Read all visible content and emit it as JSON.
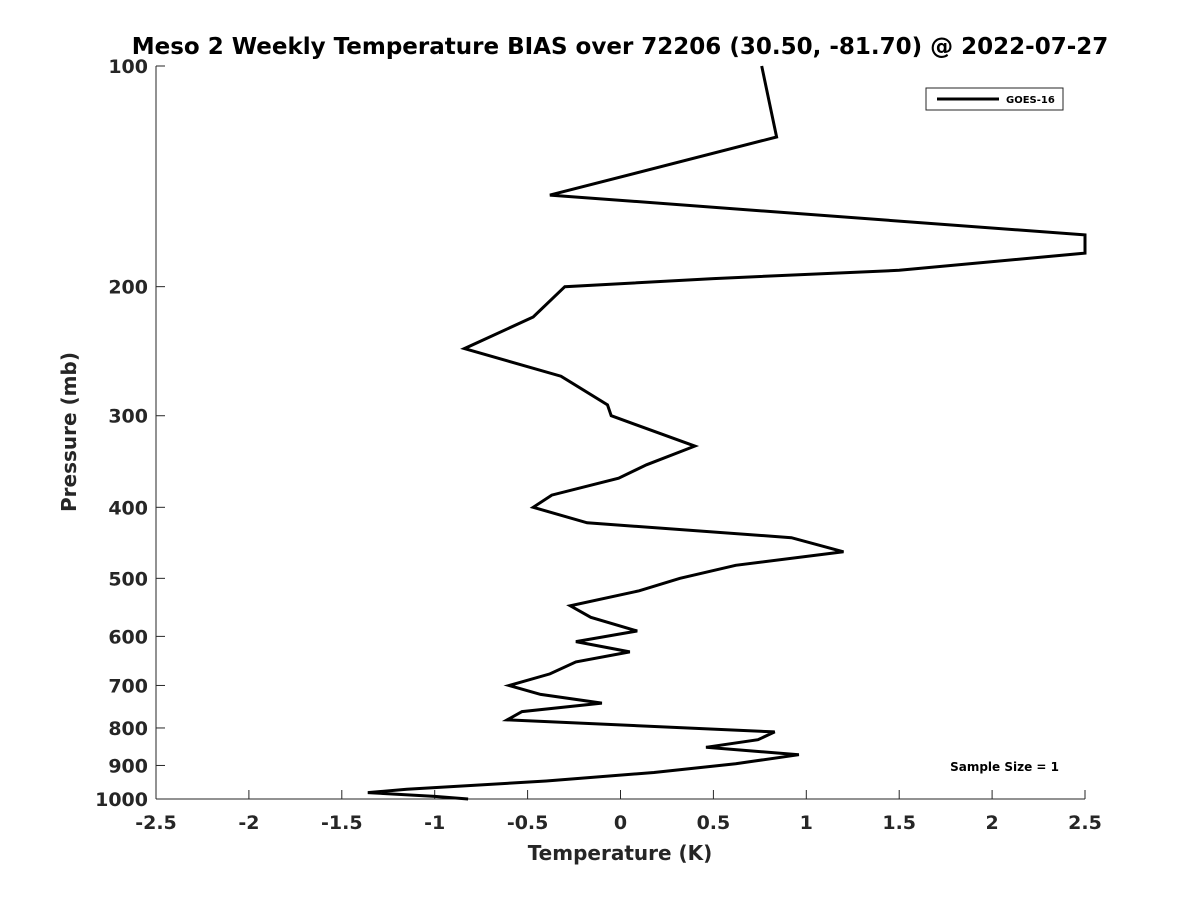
{
  "chart_data": {
    "type": "line",
    "title": "Meso 2 Weekly Temperature BIAS over 72206 (30.50, -81.70) @ 2022-07-27",
    "xlabel": "Temperature (K)",
    "ylabel": "Pressure (mb)",
    "xlim": [
      -2.5,
      2.5
    ],
    "ylim": [
      100,
      1000
    ],
    "y_scale": "log",
    "y_direction": "reversed",
    "x_ticks": [
      -2.5,
      -2,
      -1.5,
      -1,
      -0.5,
      0,
      0.5,
      1,
      1.5,
      2,
      2.5
    ],
    "x_tick_labels": [
      "-2.5",
      "-2",
      "-1.5",
      "-1",
      "-0.5",
      "0",
      "0.5",
      "1",
      "1.5",
      "2",
      "2.5"
    ],
    "y_ticks": [
      100,
      200,
      300,
      400,
      500,
      600,
      700,
      800,
      900,
      1000
    ],
    "y_tick_labels": [
      "100",
      "200",
      "300",
      "400",
      "500",
      "600",
      "700",
      "800",
      "900",
      "1000"
    ],
    "grid": false,
    "legend_position": "top-right",
    "series": [
      {
        "name": "GOES-16",
        "color": "#000000",
        "points": [
          [
            0.76,
            100
          ],
          [
            0.84,
            125
          ],
          [
            -0.38,
            150
          ],
          [
            2.5,
            170
          ],
          [
            2.5,
            180
          ],
          [
            1.5,
            190
          ],
          [
            0.5,
            195
          ],
          [
            -0.3,
            200
          ],
          [
            -0.47,
            220
          ],
          [
            -0.84,
            243
          ],
          [
            -0.32,
            265
          ],
          [
            -0.07,
            290
          ],
          [
            -0.05,
            300
          ],
          [
            0.4,
            330
          ],
          [
            0.14,
            350
          ],
          [
            -0.01,
            365
          ],
          [
            -0.37,
            385
          ],
          [
            -0.47,
            400
          ],
          [
            -0.18,
            420
          ],
          [
            0.92,
            440
          ],
          [
            1.2,
            460
          ],
          [
            0.62,
            480
          ],
          [
            0.32,
            500
          ],
          [
            0.1,
            520
          ],
          [
            -0.27,
            545
          ],
          [
            -0.16,
            565
          ],
          [
            0.09,
            590
          ],
          [
            -0.24,
            610
          ],
          [
            0.05,
            630
          ],
          [
            -0.24,
            650
          ],
          [
            -0.38,
            675
          ],
          [
            -0.6,
            700
          ],
          [
            -0.43,
            720
          ],
          [
            -0.1,
            740
          ],
          [
            -0.53,
            760
          ],
          [
            -0.61,
            780
          ],
          [
            0.83,
            810
          ],
          [
            0.74,
            830
          ],
          [
            0.46,
            850
          ],
          [
            0.96,
            870
          ],
          [
            0.62,
            895
          ],
          [
            0.18,
            920
          ],
          [
            -0.4,
            945
          ],
          [
            -1.15,
            970
          ],
          [
            -1.36,
            980
          ],
          [
            -1.0,
            992
          ],
          [
            -0.82,
            1000
          ]
        ]
      }
    ],
    "annotation": "Sample Size = 1"
  }
}
